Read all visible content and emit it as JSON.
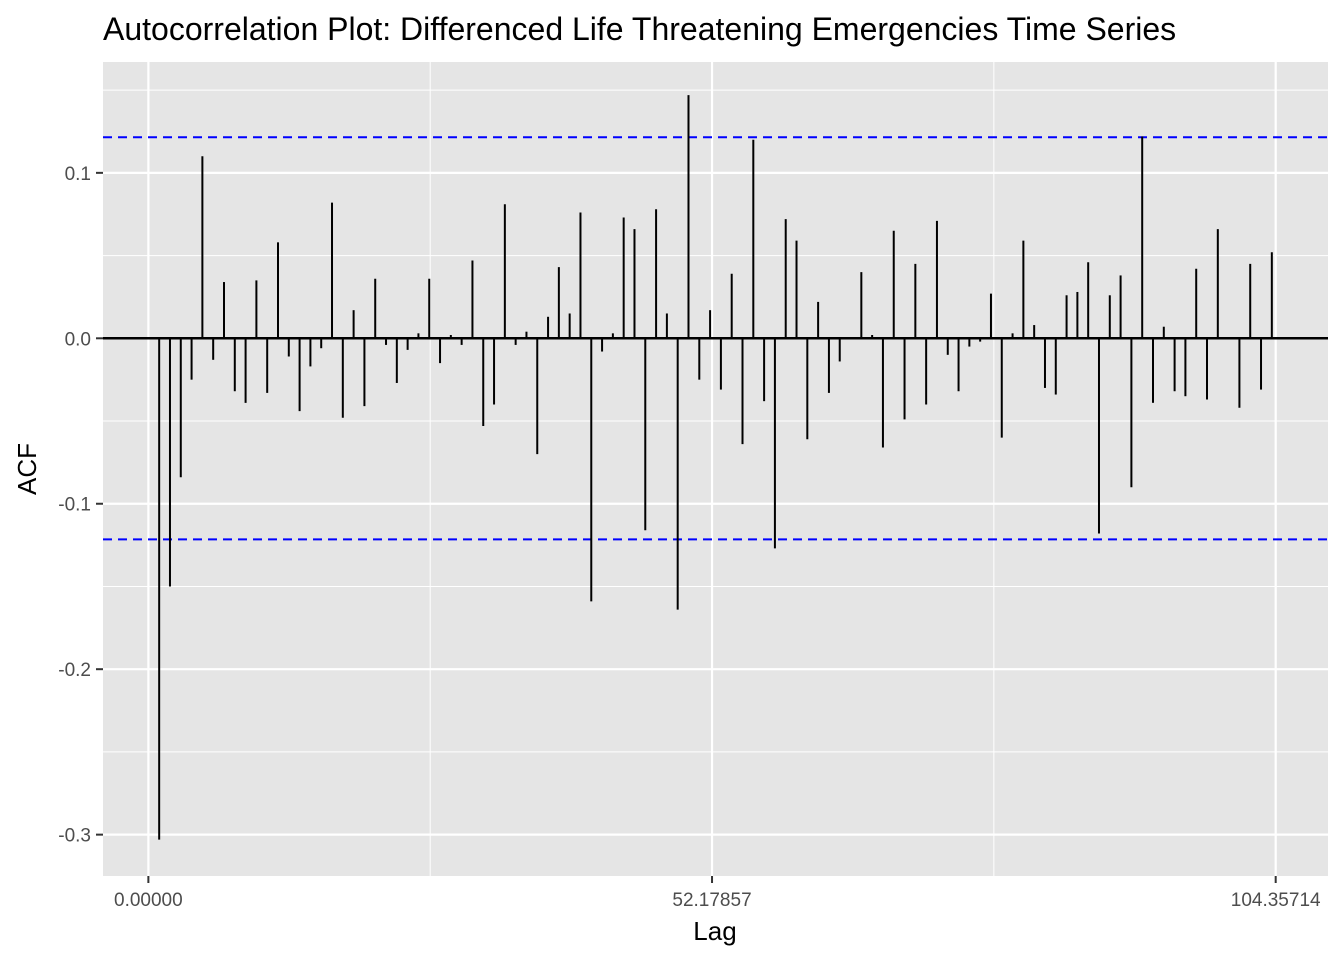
{
  "chart_data": {
    "type": "bar",
    "title": "Autocorrelation Plot: Differenced Life Threatening Emergencies Time Series",
    "xlabel": "Lag",
    "ylabel": "ACF",
    "x_ticks": [
      {
        "value": 0,
        "label": "0.00000"
      },
      {
        "value": 52.17857,
        "label": "52.17857"
      },
      {
        "value": 104.35714,
        "label": 104.35714,
        "text": "104.35714"
      }
    ],
    "y_ticks": [
      {
        "value": 0.1,
        "label": "0.1"
      },
      {
        "value": 0.0,
        "label": "0.0"
      },
      {
        "value": -0.1,
        "label": "-0.1"
      },
      {
        "value": -0.2,
        "label": "-0.2"
      },
      {
        "value": -0.3,
        "label": "-0.3"
      }
    ],
    "xlim": [
      -4.2,
      109.2
    ],
    "ylim": [
      -0.325,
      0.167
    ],
    "lag_step": 1,
    "lag_start": 1,
    "acf_values": [
      -0.303,
      -0.15,
      -0.084,
      -0.025,
      0.11,
      -0.013,
      0.034,
      -0.032,
      -0.039,
      0.035,
      -0.033,
      0.058,
      -0.011,
      -0.044,
      -0.017,
      -0.006,
      0.082,
      -0.048,
      0.017,
      -0.041,
      0.036,
      -0.004,
      -0.027,
      -0.007,
      0.003,
      0.036,
      -0.015,
      0.002,
      -0.004,
      0.047,
      -0.053,
      -0.04,
      0.081,
      -0.004,
      0.004,
      -0.07,
      0.013,
      0.043,
      0.015,
      0.076,
      -0.159,
      -0.008,
      0.003,
      0.073,
      0.066,
      -0.116,
      0.078,
      0.015,
      -0.164,
      0.147,
      -0.025,
      0.017,
      -0.031,
      0.039,
      -0.064,
      0.12,
      -0.038,
      -0.127,
      0.072,
      0.059,
      -0.061,
      0.022,
      -0.033,
      -0.014,
      0.0,
      0.04,
      0.002,
      -0.066,
      0.065,
      -0.049,
      0.045,
      -0.04,
      0.071,
      -0.01,
      -0.032,
      -0.005,
      -0.002,
      0.027,
      -0.06,
      0.003,
      0.059,
      0.008,
      -0.03,
      -0.034,
      0.026,
      0.028,
      0.046,
      -0.118,
      0.026,
      0.038,
      -0.09,
      0.122,
      -0.039,
      0.007,
      -0.032,
      -0.035,
      0.042,
      -0.037,
      0.066,
      0.0,
      -0.042,
      0.045,
      -0.031,
      0.052
    ],
    "confidence_bound": 0.1215,
    "colors": {
      "panel": "#e5e5e5",
      "grid": "#ffffff",
      "bars": "#000000",
      "bounds": "#0000ff"
    },
    "grid": true
  }
}
